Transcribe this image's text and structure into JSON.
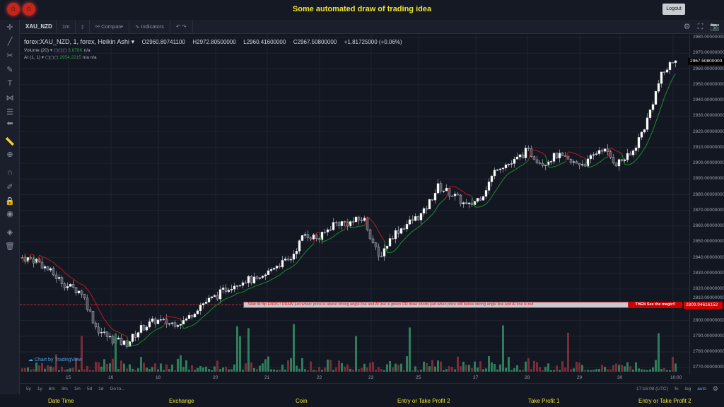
{
  "header": {
    "title": "Some automated draw of trading idea",
    "logout": "Logout"
  },
  "toolbar": {
    "symbol": "XAU_NZD",
    "interval": "1m",
    "compare": "Compare",
    "indicators": "Indicators"
  },
  "legend": {
    "name": "forex:XAU_NZD, 1, forex, Heikin Ashi",
    "open": "O2960.80741100",
    "high": "H2972.80500000",
    "low": "L2960.41600000",
    "close": "C2967.50800000",
    "change": "+1.81725000 (+0.06%)",
    "volume_label": "Volume (20)",
    "volume_value": "3.678K",
    "volume_na": "n/a",
    "ai_label": "AI (1, 1)",
    "ai_value": "2954.2215",
    "ai_na": "n/a  n/a"
  },
  "price_axis": [
    "2980.00000000",
    "2970.00000000",
    "2960.00000000",
    "2950.00000000",
    "2940.00000000",
    "2930.00000000",
    "2920.00000000",
    "2910.00000000",
    "2900.00000000",
    "2890.00000000",
    "2880.00000000",
    "2870.00000000",
    "2860.00000000",
    "2850.00000000",
    "2840.00000000",
    "2830.00000000",
    "2820.00000000",
    "2810.00000000",
    "2800.00000000",
    "2790.00000000",
    "2780.00000000",
    "2770.00000000"
  ],
  "current_price": "2967.50800000",
  "line_price": "2809.94616152",
  "banner": {
    "text": "Wait till flip ENDS  !   DRAW just when:  price is above strong angle line and AI line is green        OR        draw shorts just when price still below strong angle line and AI line is red",
    "magic": "THEN See the magic!!"
  },
  "time_axis": [
    "15",
    "16",
    "18",
    "20",
    "21",
    "22",
    "23",
    "25",
    "27",
    "28",
    "29",
    "30",
    "10:00"
  ],
  "ranges": [
    "5y",
    "1y",
    "6m",
    "3m",
    "1m",
    "5d",
    "1d"
  ],
  "goto": "Go to...",
  "clock": "17:16:08 (UTC)",
  "scale": {
    "percent": "%",
    "log": "log",
    "auto": "auto"
  },
  "watermark": "Chart by TradingView",
  "footer": [
    "Date Time",
    "Exchange",
    "Coin",
    "Entry or Take Profit 2",
    "Take Profit 1",
    "Entry or Take Profit 2"
  ],
  "colors": {
    "up": "#ffffff",
    "down": "#4a4e58",
    "ai_green": "#1f8a2e",
    "ai_red": "#b71c1c",
    "vol_up": "#2e7d5b",
    "vol_down": "#7a2c38",
    "title": "#f0e430"
  },
  "chart_data": {
    "type": "candlestick",
    "price_range": [
      2765,
      2985
    ],
    "path": [
      2840,
      2838,
      2830,
      2822,
      2818,
      2795,
      2788,
      2785,
      2795,
      2800,
      2798,
      2800,
      2810,
      2815,
      2822,
      2826,
      2825,
      2835,
      2838,
      2855,
      2852,
      2862,
      2862,
      2865,
      2840,
      2855,
      2862,
      2868,
      2885,
      2880,
      2872,
      2880,
      2898,
      2900,
      2908,
      2900,
      2905,
      2900,
      2900,
      2910,
      2900,
      2905,
      2925,
      2955,
      2967.5
    ]
  }
}
